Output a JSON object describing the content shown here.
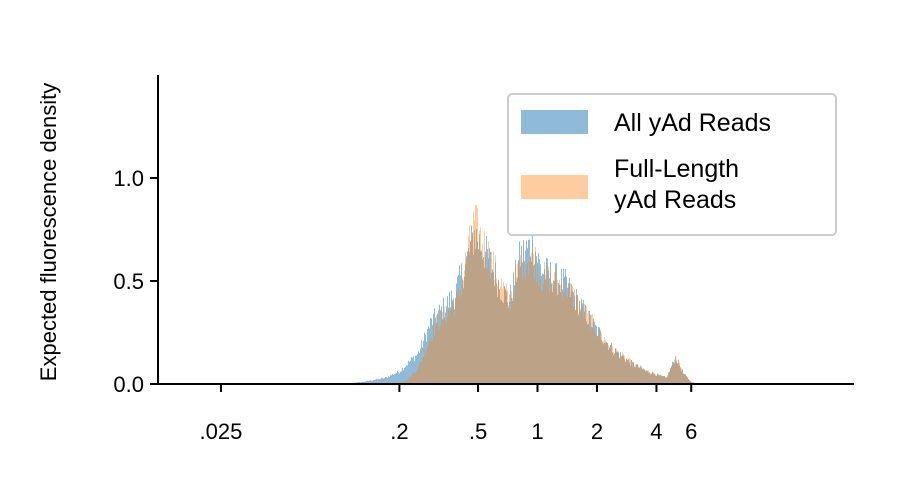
{
  "chart_data": {
    "type": "histogram",
    "title": "",
    "xlabel": "",
    "ylabel": "Expected fluorescence density",
    "xscale": "log",
    "xlim": [
      0.012,
      40
    ],
    "ylim": [
      0,
      1.5
    ],
    "x_ticks": [
      {
        "value": 0.025,
        "label": ".025"
      },
      {
        "value": 0.2,
        "label": ".2"
      },
      {
        "value": 0.5,
        "label": ".5"
      },
      {
        "value": 1,
        "label": "1"
      },
      {
        "value": 2,
        "label": "2"
      },
      {
        "value": 4,
        "label": "4"
      },
      {
        "value": 6,
        "label": "6"
      }
    ],
    "y_ticks": [
      {
        "value": 0.0,
        "label": "0.0"
      },
      {
        "value": 0.5,
        "label": "0.5"
      },
      {
        "value": 1.0,
        "label": "1.0"
      }
    ],
    "grid": false,
    "legend_position": "top-right",
    "series": [
      {
        "name": "All yAd Reads",
        "color": "#1f77b4",
        "opacity": 0.5,
        "profile": [
          [
            0.1,
            0.0
          ],
          [
            0.13,
            0.01
          ],
          [
            0.17,
            0.03
          ],
          [
            0.2,
            0.06
          ],
          [
            0.25,
            0.15
          ],
          [
            0.29,
            0.3
          ],
          [
            0.33,
            0.36
          ],
          [
            0.38,
            0.43
          ],
          [
            0.44,
            0.6
          ],
          [
            0.48,
            0.73
          ],
          [
            0.52,
            0.67
          ],
          [
            0.57,
            0.6
          ],
          [
            0.64,
            0.48
          ],
          [
            0.72,
            0.4
          ],
          [
            0.82,
            0.62
          ],
          [
            0.95,
            0.68
          ],
          [
            1.05,
            0.55
          ],
          [
            1.2,
            0.52
          ],
          [
            1.4,
            0.48
          ],
          [
            1.7,
            0.36
          ],
          [
            2.0,
            0.26
          ],
          [
            2.4,
            0.17
          ],
          [
            3.0,
            0.1
          ],
          [
            3.6,
            0.06
          ],
          [
            4.5,
            0.03
          ],
          [
            5.0,
            0.13
          ],
          [
            5.5,
            0.05
          ],
          [
            6.0,
            0.01
          ],
          [
            6.5,
            0.0
          ]
        ]
      },
      {
        "name": "Full-Length yAd Reads",
        "color": "#ff7f0e",
        "opacity": 0.4,
        "profile": [
          [
            0.19,
            0.0
          ],
          [
            0.22,
            0.02
          ],
          [
            0.25,
            0.08
          ],
          [
            0.28,
            0.2
          ],
          [
            0.31,
            0.3
          ],
          [
            0.35,
            0.34
          ],
          [
            0.4,
            0.42
          ],
          [
            0.44,
            0.62
          ],
          [
            0.48,
            0.78
          ],
          [
            0.52,
            0.7
          ],
          [
            0.57,
            0.62
          ],
          [
            0.64,
            0.5
          ],
          [
            0.72,
            0.4
          ],
          [
            0.82,
            0.58
          ],
          [
            0.95,
            0.63
          ],
          [
            1.05,
            0.52
          ],
          [
            1.2,
            0.5
          ],
          [
            1.4,
            0.47
          ],
          [
            1.7,
            0.36
          ],
          [
            2.0,
            0.26
          ],
          [
            2.4,
            0.17
          ],
          [
            3.0,
            0.1
          ],
          [
            3.6,
            0.06
          ],
          [
            4.5,
            0.03
          ],
          [
            5.0,
            0.13
          ],
          [
            5.5,
            0.05
          ],
          [
            6.0,
            0.01
          ],
          [
            6.5,
            0.0
          ]
        ]
      }
    ]
  }
}
